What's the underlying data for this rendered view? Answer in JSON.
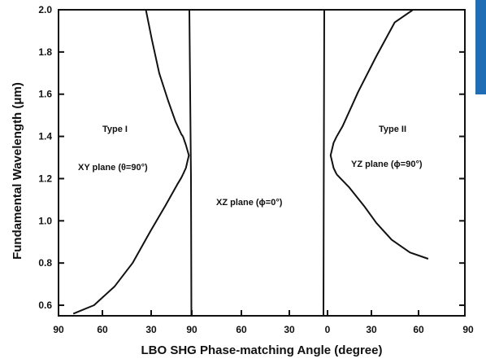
{
  "chart_data": {
    "type": "line",
    "xlabel": "LBO SHG Phase-matching Angle (degree)",
    "ylabel": "Fundamental Wavelength (μm)",
    "ylim": [
      0.55,
      2.0
    ],
    "y_ticks": [
      "0.6",
      "0.8",
      "1.0",
      "1.2",
      "1.4",
      "1.6",
      "1.8",
      "2.0"
    ],
    "x_tick_labels": [
      "90",
      "60",
      "30",
      "90",
      "60",
      "30",
      "0",
      "30",
      "60",
      "90"
    ],
    "annotations": [
      {
        "id": "type1",
        "text": "Type I"
      },
      {
        "id": "xy",
        "text": "XY plane (θ=90°)"
      },
      {
        "id": "xz",
        "text": "XZ plane (ϕ=0°)"
      },
      {
        "id": "type2",
        "text": "Type II"
      },
      {
        "id": "yz",
        "text": "YZ plane (ϕ=90°)"
      }
    ],
    "series": [
      {
        "x": [
          80,
          66,
          52,
          40,
          28,
          18,
          10,
          7,
          6
        ],
        "y": [
          0.56,
          0.6,
          0.69,
          0.8,
          0.95,
          1.07,
          1.17,
          1.205,
          1.22
        ]
      },
      {
        "x": [
          31,
          27,
          22,
          16,
          11,
          7,
          6
        ],
        "y": [
          2.0,
          1.86,
          1.7,
          1.57,
          1.47,
          1.41,
          1.4
        ]
      },
      {
        "x": [
          6,
          4,
          2,
          4,
          6
        ],
        "y": [
          1.4,
          1.36,
          1.31,
          1.25,
          1.22
        ]
      },
      {
        "x": [
          0,
          1,
          2,
          2.5
        ],
        "y": [
          2.0,
          1.6,
          1.2,
          0.55
        ]
      },
      {
        "x": [
          -1,
          -1.3,
          -1.6,
          -2
        ],
        "y": [
          2.0,
          1.6,
          1.2,
          0.55
        ]
      },
      {
        "x": [
          -6,
          -4,
          -2,
          -4,
          -6
        ],
        "y": [
          1.4,
          1.37,
          1.31,
          1.25,
          1.22
        ]
      },
      {
        "x": [
          -6,
          -10,
          -20,
          -32,
          -44,
          -56,
          -68
        ],
        "y": [
          1.4,
          1.45,
          1.61,
          1.78,
          1.94,
          2.0,
          2.0
        ]
      },
      {
        "x": [
          -6,
          -14,
          -24,
          -32,
          -42,
          -54,
          -66
        ],
        "y": [
          1.22,
          1.16,
          1.07,
          0.99,
          0.91,
          0.85,
          0.82
        ]
      }
    ],
    "grid": false
  },
  "page": {
    "accent_color": "#1f6db5"
  }
}
